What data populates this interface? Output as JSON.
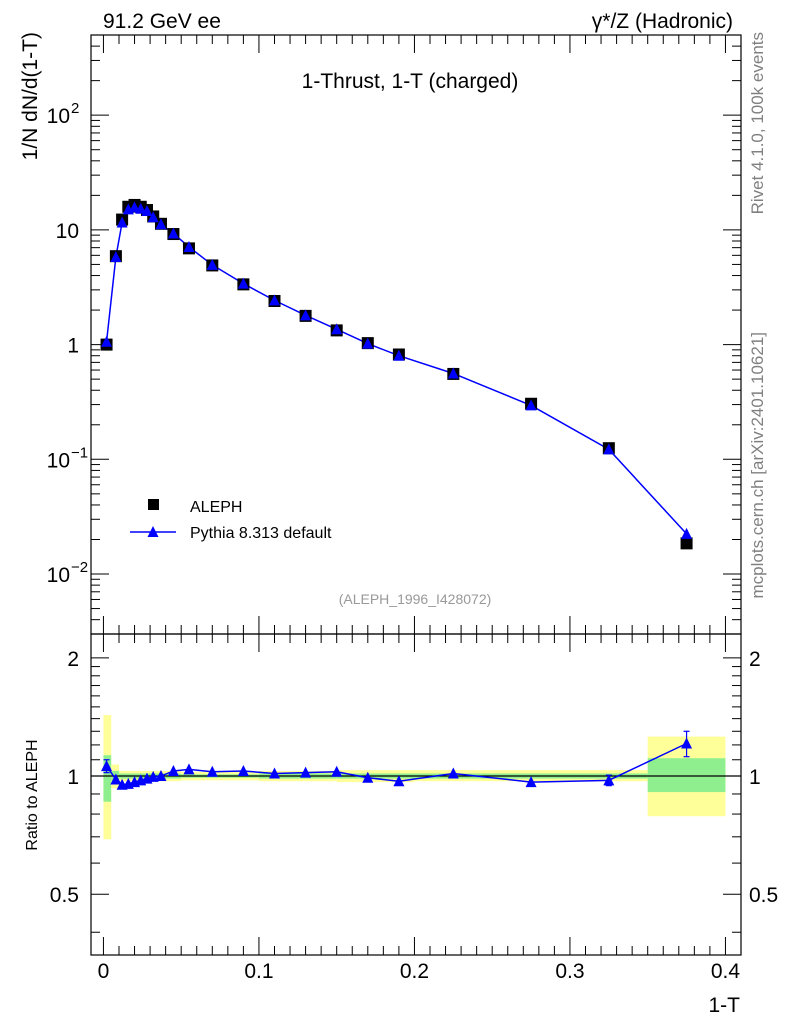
{
  "header": {
    "beam": "91.2 GeV ee",
    "process": "γ*/Z (Hadronic)"
  },
  "side": {
    "rivet": "Rivet 4.1.0,  100k events",
    "mcplots": "mcplots.cern.ch [arXiv:2401.10621]"
  },
  "chart_data": {
    "type": "scatter",
    "title": "1-Thrust, 1-T (charged)",
    "xlabel": "1-T",
    "ylabel": "1/N  dN/d(1-T)",
    "ratio_ylabel": "Ratio to ALEPH",
    "analysis_ref": "(ALEPH_1996_I428072)",
    "xlim": [
      -0.008,
      0.41
    ],
    "ylim": [
      0.003,
      500
    ],
    "ratio_ylim": [
      0.35,
      2.3
    ],
    "x_ticks": [
      0,
      0.1,
      0.2,
      0.3,
      0.4
    ],
    "x_tick_labels": [
      "0",
      "0.1",
      "0.2",
      "0.3",
      "0.4"
    ],
    "y_tick_labels": {
      "1e-2": "10",
      "1e-2_exp": "−2",
      "1e-1": "10",
      "1e-1_exp": "−1",
      "1": "1",
      "10": "10",
      "100": "10",
      "100_exp": "2"
    },
    "ratio_tick_labels": [
      "0.5",
      "1",
      "2"
    ],
    "ratio_ticks": [
      0.5,
      1,
      2
    ],
    "x": [
      0.002,
      0.008,
      0.012,
      0.016,
      0.02,
      0.024,
      0.028,
      0.032,
      0.037,
      0.045,
      0.055,
      0.07,
      0.09,
      0.11,
      0.13,
      0.15,
      0.17,
      0.19,
      0.225,
      0.275,
      0.325,
      0.375
    ],
    "series": [
      {
        "name": "ALEPH",
        "marker": "square",
        "color": "#000000",
        "values": [
          1.0,
          5.9,
          12.3,
          15.9,
          16.5,
          15.9,
          14.9,
          13.1,
          11.3,
          9.2,
          6.9,
          4.9,
          3.35,
          2.4,
          1.78,
          1.33,
          1.03,
          0.82,
          0.555,
          0.305,
          0.125,
          0.0185
        ]
      },
      {
        "name": "Pythia 8.313 default",
        "marker": "triangle",
        "color": "#0000ff",
        "values": [
          1.06,
          5.8,
          11.6,
          15.1,
          15.7,
          15.3,
          14.6,
          12.9,
          11.2,
          9.3,
          7.1,
          4.95,
          3.4,
          2.43,
          1.8,
          1.36,
          1.02,
          0.8,
          0.56,
          0.295,
          0.122,
          0.0224
        ]
      }
    ],
    "ratio": [
      1.06,
      0.98,
      0.95,
      0.955,
      0.965,
      0.975,
      0.985,
      0.995,
      1.0,
      1.03,
      1.04,
      1.025,
      1.03,
      1.015,
      1.02,
      1.025,
      0.99,
      0.97,
      1.015,
      0.965,
      0.975,
      1.21
    ],
    "ratio_err": [
      0.04,
      0.015,
      0.01,
      0.01,
      0.01,
      0.01,
      0.01,
      0.01,
      0.01,
      0.01,
      0.01,
      0.01,
      0.01,
      0.01,
      0.01,
      0.01,
      0.01,
      0.01,
      0.01,
      0.01,
      0.03,
      0.09
    ],
    "band_edges": [
      0.0,
      0.005,
      0.01,
      0.05,
      0.1,
      0.15,
      0.2,
      0.25,
      0.3,
      0.35,
      0.4
    ],
    "band_inner": [
      [
        0.86,
        1.13
      ],
      [
        0.97,
        1.03
      ],
      [
        0.985,
        1.015
      ],
      [
        0.99,
        1.01
      ],
      [
        0.985,
        1.015
      ],
      [
        0.985,
        1.015
      ],
      [
        0.985,
        1.015
      ],
      [
        0.985,
        1.015
      ],
      [
        0.985,
        1.015
      ],
      [
        0.91,
        1.11
      ]
    ],
    "band_outer": [
      [
        0.69,
        1.43
      ],
      [
        0.93,
        1.07
      ],
      [
        0.97,
        1.03
      ],
      [
        0.975,
        1.025
      ],
      [
        0.97,
        1.03
      ],
      [
        0.965,
        1.035
      ],
      [
        0.97,
        1.035
      ],
      [
        0.97,
        1.035
      ],
      [
        0.97,
        1.035
      ],
      [
        0.79,
        1.26
      ]
    ],
    "colors": {
      "inner_band": "#8fef8f",
      "outer_band": "#ffff99",
      "data": "#000000",
      "mc": "#0000ff"
    },
    "legend_position": "bottom-left"
  }
}
